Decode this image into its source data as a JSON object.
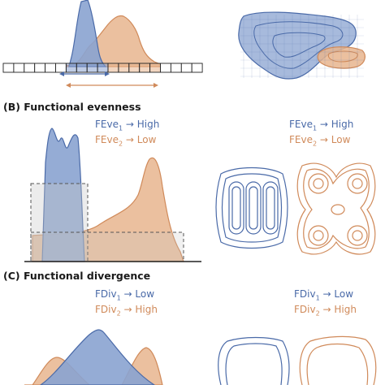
{
  "colors": {
    "blue": "#4a6aa8",
    "blue_fill": "#8aa3d0",
    "orange": "#d08a5a",
    "orange_fill": "#e8b58e"
  },
  "section_b": {
    "title": "(B) Functional evenness",
    "left_legend": {
      "fe1_prefix": "FEve",
      "fe1_sub": "1",
      "fe1_value": "High",
      "fe2_prefix": "FEve",
      "fe2_sub": "2",
      "fe2_value": "Low"
    },
    "right_legend": {
      "fe1_prefix": "FEve",
      "fe1_sub": "1",
      "fe1_value": "High",
      "fe2_prefix": "FEve",
      "fe2_sub": "2",
      "fe2_value": "Low"
    }
  },
  "section_c": {
    "title": "(C) Functional divergence",
    "left_legend": {
      "fd1_prefix": "FDiv",
      "fd1_sub": "1",
      "fd1_value": "Low",
      "fd2_prefix": "FDiv",
      "fd2_sub": "2",
      "fd2_value": "High"
    },
    "right_legend": {
      "fd1_prefix": "FDiv",
      "fd1_sub": "1",
      "fd1_value": "Low",
      "fd2_prefix": "FDiv",
      "fd2_sub": "2",
      "fd2_value": "High"
    }
  },
  "arrow_glyph": "→"
}
